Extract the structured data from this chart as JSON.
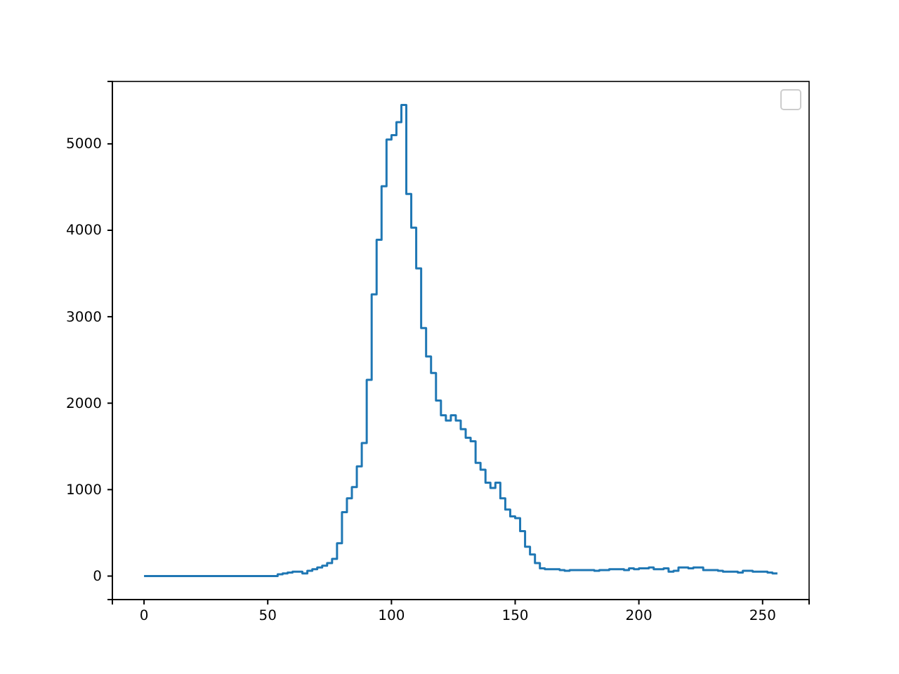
{
  "chart_data": {
    "type": "step",
    "x": [
      0,
      2,
      4,
      6,
      8,
      10,
      12,
      14,
      16,
      18,
      20,
      22,
      24,
      26,
      28,
      30,
      32,
      34,
      36,
      38,
      40,
      42,
      44,
      46,
      48,
      50,
      52,
      54,
      56,
      58,
      60,
      62,
      64,
      66,
      68,
      70,
      72,
      74,
      76,
      78,
      80,
      82,
      84,
      86,
      88,
      90,
      92,
      94,
      96,
      98,
      100,
      102,
      104,
      106,
      108,
      110,
      112,
      114,
      116,
      118,
      120,
      122,
      124,
      126,
      128,
      130,
      132,
      134,
      136,
      138,
      140,
      142,
      144,
      146,
      148,
      150,
      152,
      154,
      156,
      158,
      160,
      162,
      164,
      166,
      168,
      170,
      172,
      174,
      176,
      178,
      180,
      182,
      184,
      186,
      188,
      190,
      192,
      194,
      196,
      198,
      200,
      202,
      204,
      206,
      208,
      210,
      212,
      214,
      216,
      218,
      220,
      222,
      224,
      226,
      228,
      230,
      232,
      234,
      236,
      238,
      240,
      242,
      244,
      246,
      248,
      250,
      252,
      254,
      256
    ],
    "series": [
      {
        "color": "#1f77b4",
        "values": [
          0,
          0,
          0,
          0,
          0,
          0,
          0,
          0,
          0,
          0,
          0,
          0,
          0,
          0,
          0,
          0,
          0,
          0,
          0,
          0,
          0,
          0,
          0,
          0,
          0,
          0,
          0,
          0,
          20,
          30,
          40,
          50,
          50,
          30,
          60,
          80,
          100,
          120,
          150,
          200,
          380,
          740,
          900,
          1030,
          1270,
          1540,
          2270,
          3260,
          3890,
          4510,
          5050,
          5100,
          5250,
          5450,
          4420,
          4030,
          3560,
          2870,
          2540,
          2350,
          2030,
          1860,
          1800,
          1860,
          1800,
          1700,
          1600,
          1560,
          1310,
          1230,
          1080,
          1020,
          1080,
          900,
          770,
          690,
          670,
          520,
          340,
          250,
          150,
          90,
          80,
          80,
          80,
          70,
          60,
          70,
          70,
          70,
          70,
          70,
          60,
          70,
          70,
          80,
          80,
          80,
          70,
          90,
          80,
          90,
          90,
          100,
          80,
          80,
          90,
          50,
          60,
          100,
          100,
          90,
          100,
          100,
          70,
          70,
          70,
          60,
          50,
          50,
          50,
          40,
          60,
          60,
          50,
          50,
          50,
          40,
          30
        ]
      }
    ],
    "xlim": [
      -12.8,
      268.8
    ],
    "xticks": [
      0,
      50,
      100,
      150,
      200,
      250
    ],
    "ylim": [
      -272,
      5722
    ],
    "yticks": [
      0,
      1000,
      2000,
      3000,
      4000,
      5000
    ]
  }
}
